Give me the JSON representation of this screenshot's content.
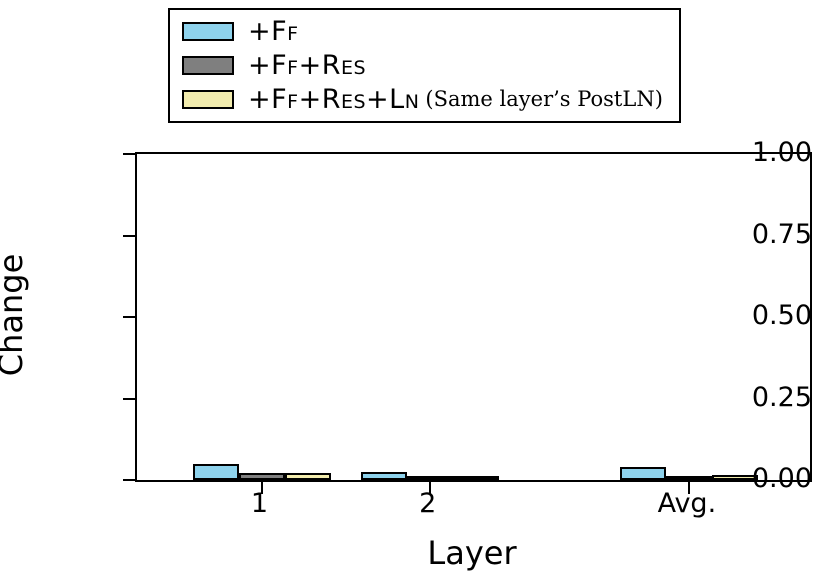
{
  "chart_data": {
    "type": "bar",
    "title": "",
    "xlabel": "Layer",
    "ylabel": "Change",
    "categories": [
      "1",
      "2",
      "Avg."
    ],
    "category_positions": [
      0.185,
      0.435,
      0.82
    ],
    "ylim": [
      0,
      1.0
    ],
    "yticks": [
      {
        "value": 0.0,
        "label": "0.00"
      },
      {
        "value": 0.25,
        "label": "0.25"
      },
      {
        "value": 0.5,
        "label": "0.50"
      },
      {
        "value": 0.75,
        "label": "0.75"
      },
      {
        "value": 1.0,
        "label": "1.00"
      }
    ],
    "grid": false,
    "legend_position": "upper-left",
    "series": [
      {
        "name": "+FF",
        "legend_main": "+Ff",
        "legend_note": "",
        "color": "#8ed2ec",
        "values": [
          0.05,
          0.025,
          0.04
        ]
      },
      {
        "name": "+FF+RES",
        "legend_main": "+Ff+Res",
        "legend_note": "",
        "color": "#7f7f7f",
        "values": [
          0.02,
          0.006,
          0.012
        ]
      },
      {
        "name": "+FF+RES+LN (Same layer's PostLN)",
        "legend_main": "+Ff+Res+Ln",
        "legend_note": "(Same layer’s PostLN)",
        "color": "#f2ecae",
        "values": [
          0.022,
          0.006,
          0.015
        ]
      }
    ]
  }
}
